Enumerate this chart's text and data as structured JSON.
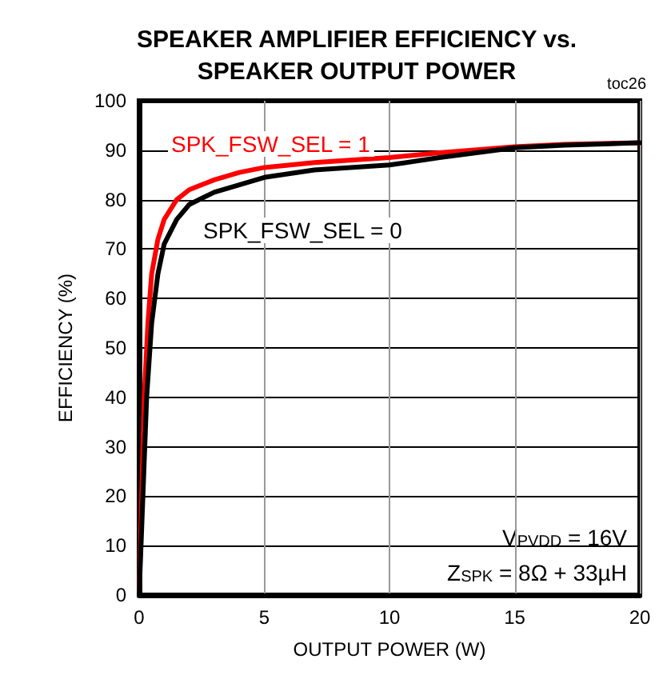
{
  "chart_data": {
    "type": "line",
    "title": "SPEAKER AMPLIFIER EFFICIENCY vs.\nSPEAKER OUTPUT POWER",
    "xlabel": "OUTPUT POWER (W)",
    "ylabel": "EFFICIENCY (%)",
    "annotations": [
      "toc26",
      "V$_{PVDD}$ = 16V",
      "Z$_{SPK}$ = 8Ω + 33µH"
    ],
    "series": [
      {
        "name": "SPK_FSW_SEL = 1",
        "color": "#ff0000",
        "x": [
          0,
          0.1,
          0.2,
          0.35,
          0.5,
          0.75,
          1,
          1.5,
          2,
          3,
          4,
          5,
          7,
          10,
          12,
          15,
          17,
          20
        ],
        "values": [
          0,
          20,
          40,
          55,
          65,
          72,
          76,
          80,
          82,
          84,
          85.5,
          86.5,
          87.5,
          88.5,
          89.5,
          90.7,
          91.2,
          91.5
        ]
      },
      {
        "name": "SPK_FSW_SEL = 0",
        "color": "#000000",
        "x": [
          0,
          0.15,
          0.3,
          0.5,
          0.75,
          1,
          1.5,
          2,
          3,
          4,
          5,
          7,
          10,
          12,
          15,
          17,
          20
        ],
        "values": [
          0,
          20,
          40,
          55,
          65,
          71,
          76,
          79,
          81.5,
          83,
          84.5,
          86,
          87,
          88.5,
          90.5,
          91,
          91.5
        ]
      }
    ],
    "xlim": [
      0,
      20
    ],
    "xticks": [
      0,
      5,
      10,
      15,
      20
    ],
    "ylim": [
      0,
      100
    ],
    "yticks": [
      0,
      10,
      20,
      30,
      40,
      50,
      60,
      70,
      80,
      90,
      100
    ],
    "grid": true,
    "marker": "none",
    "line_style": "solid"
  }
}
